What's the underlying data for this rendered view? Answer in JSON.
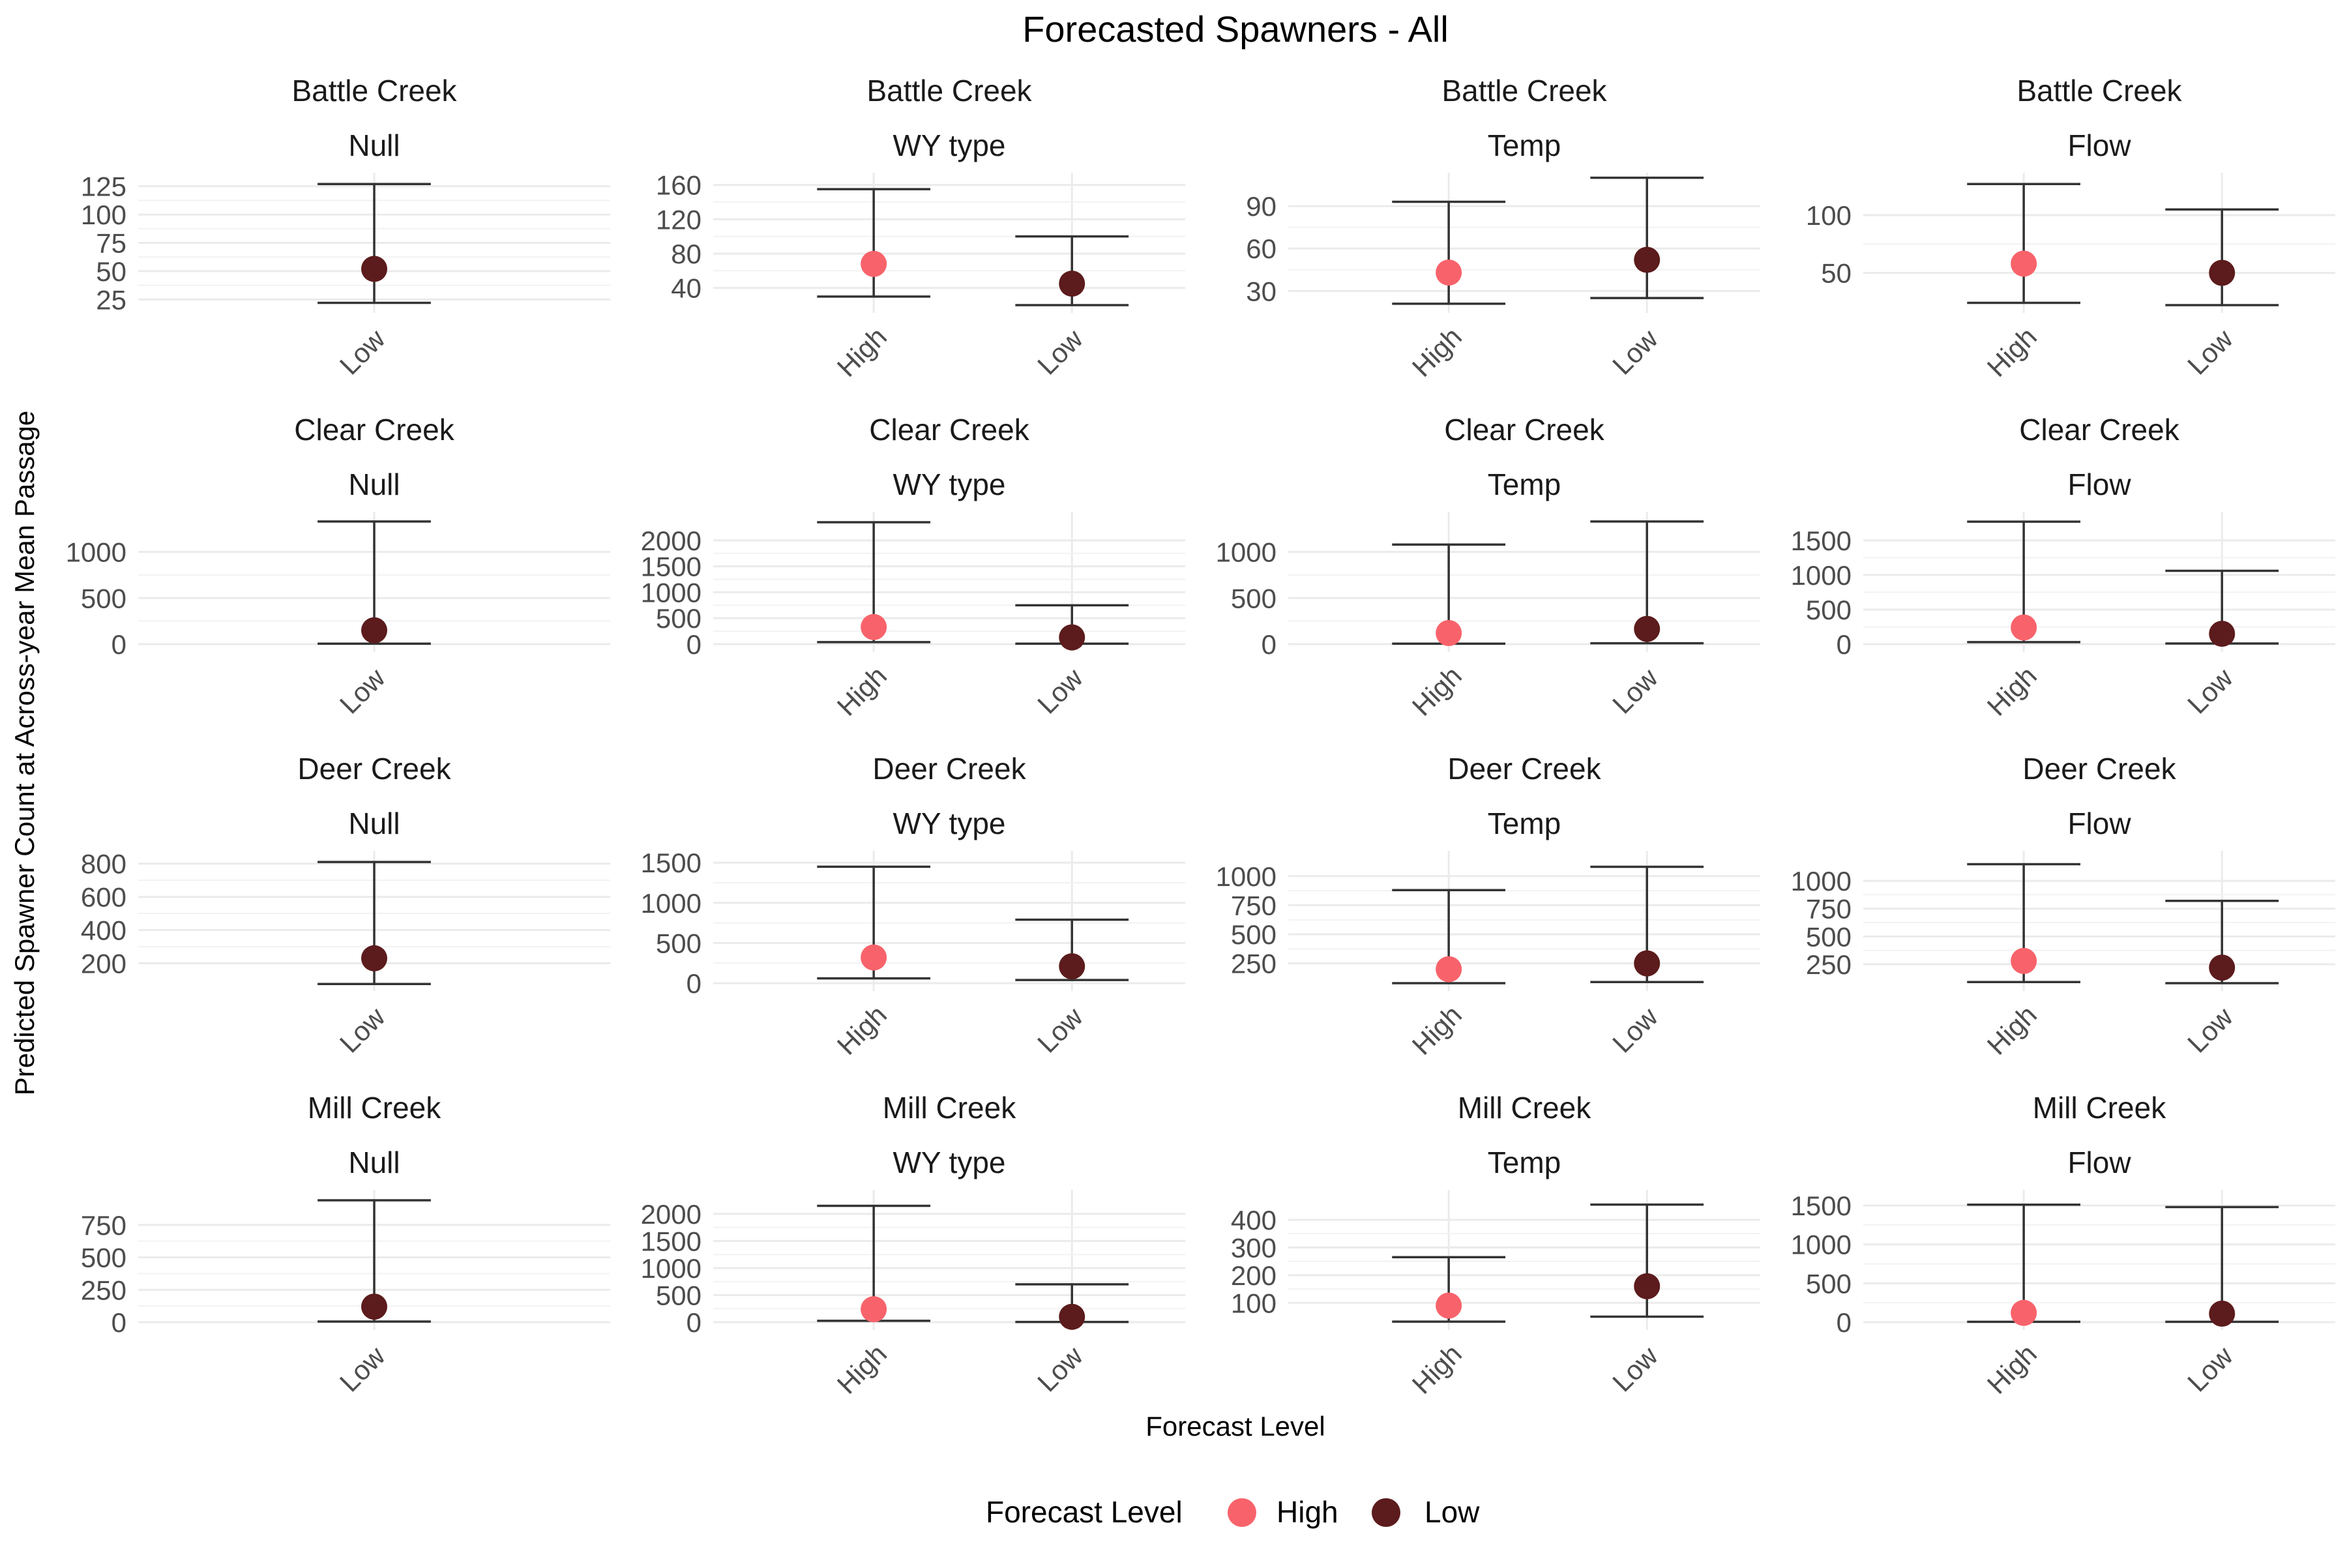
{
  "chart_data": {
    "type": "scatter",
    "title": "Forecasted Spawners - All",
    "xlabel": "Forecast Level",
    "ylabel": "Predicted Spawner Count at Across-year Mean Passage",
    "legend": {
      "title": "Forecast Level",
      "placement": "bottom",
      "entries": [
        {
          "name": "High",
          "color": "#F8636B"
        },
        {
          "name": "Low",
          "color": "#5C1B1C"
        }
      ]
    },
    "colors": {
      "High": "#F8636B",
      "Low": "#5C1B1C"
    },
    "panels": [
      {
        "stream": "Battle Creek",
        "model": "Null",
        "ylim": [
          20,
          130
        ],
        "yticks": [
          "25",
          "50",
          "75",
          "100",
          "125"
        ],
        "points": [
          {
            "level": "Low",
            "value": 52,
            "lower": 22,
            "upper": 127
          }
        ]
      },
      {
        "stream": "Battle Creek",
        "model": "WY type",
        "ylim": [
          20,
          165
        ],
        "yticks": [
          "40",
          "80",
          "120",
          "160"
        ],
        "points": [
          {
            "level": "High",
            "value": 68,
            "lower": 30,
            "upper": 155
          },
          {
            "level": "Low",
            "value": 45,
            "lower": 20,
            "upper": 100
          }
        ]
      },
      {
        "stream": "Battle Creek",
        "model": "Temp",
        "ylim": [
          20,
          108
        ],
        "yticks": [
          "30",
          "60",
          "90"
        ],
        "points": [
          {
            "level": "High",
            "value": 43,
            "lower": 21,
            "upper": 93
          },
          {
            "level": "Low",
            "value": 52,
            "lower": 25,
            "upper": 110
          }
        ]
      },
      {
        "stream": "Battle Creek",
        "model": "Flow",
        "ylim": [
          22,
          130
        ],
        "yticks": [
          "50",
          "100"
        ],
        "points": [
          {
            "level": "High",
            "value": 58,
            "lower": 24,
            "upper": 127
          },
          {
            "level": "Low",
            "value": 50,
            "lower": 22,
            "upper": 105
          }
        ]
      },
      {
        "stream": "Clear Creek",
        "model": "Null",
        "ylim": [
          0,
          1350
        ],
        "yticks": [
          "0",
          "500",
          "1000"
        ],
        "points": [
          {
            "level": "Low",
            "value": 150,
            "lower": 5,
            "upper": 1330
          }
        ]
      },
      {
        "stream": "Clear Creek",
        "model": "WY type",
        "ylim": [
          0,
          2400
        ],
        "yticks": [
          "0",
          "500",
          "1000",
          "1500",
          "2000"
        ],
        "points": [
          {
            "level": "High",
            "value": 330,
            "lower": 40,
            "upper": 2350
          },
          {
            "level": "Low",
            "value": 130,
            "lower": 10,
            "upper": 750
          }
        ]
      },
      {
        "stream": "Clear Creek",
        "model": "Temp",
        "ylim": [
          0,
          1350
        ],
        "yticks": [
          "0",
          "500",
          "1000"
        ],
        "points": [
          {
            "level": "High",
            "value": 120,
            "lower": 5,
            "upper": 1080
          },
          {
            "level": "Low",
            "value": 165,
            "lower": 10,
            "upper": 1330
          }
        ]
      },
      {
        "stream": "Clear Creek",
        "model": "Flow",
        "ylim": [
          0,
          1800
        ],
        "yticks": [
          "0",
          "500",
          "1000",
          "1500"
        ],
        "points": [
          {
            "level": "High",
            "value": 240,
            "lower": 30,
            "upper": 1770
          },
          {
            "level": "Low",
            "value": 150,
            "lower": 10,
            "upper": 1060
          }
        ]
      },
      {
        "stream": "Deer Creek",
        "model": "Null",
        "ylim": [
          80,
          830
        ],
        "yticks": [
          "200",
          "400",
          "600",
          "800"
        ],
        "points": [
          {
            "level": "Low",
            "value": 230,
            "lower": 75,
            "upper": 810
          }
        ]
      },
      {
        "stream": "Deer Creek",
        "model": "WY type",
        "ylim": [
          0,
          1550
        ],
        "yticks": [
          "0",
          "500",
          "1000",
          "1500"
        ],
        "points": [
          {
            "level": "High",
            "value": 320,
            "lower": 60,
            "upper": 1450
          },
          {
            "level": "Low",
            "value": 210,
            "lower": 40,
            "upper": 790
          }
        ]
      },
      {
        "stream": "Deer Creek",
        "model": "Temp",
        "ylim": [
          80,
          1150
        ],
        "yticks": [
          "250",
          "500",
          "750",
          "1000"
        ],
        "points": [
          {
            "level": "High",
            "value": 200,
            "lower": 80,
            "upper": 880
          },
          {
            "level": "Low",
            "value": 250,
            "lower": 90,
            "upper": 1080
          }
        ]
      },
      {
        "stream": "Deer Creek",
        "model": "Flow",
        "ylim": [
          80,
          1200
        ],
        "yticks": [
          "250",
          "500",
          "750",
          "1000"
        ],
        "points": [
          {
            "level": "High",
            "value": 280,
            "lower": 90,
            "upper": 1150
          },
          {
            "level": "Low",
            "value": 220,
            "lower": 80,
            "upper": 820
          }
        ]
      },
      {
        "stream": "Mill Creek",
        "model": "Null",
        "ylim": [
          0,
          960
        ],
        "yticks": [
          "0",
          "250",
          "500",
          "750"
        ],
        "points": [
          {
            "level": "Low",
            "value": 120,
            "lower": 5,
            "upper": 940
          }
        ]
      },
      {
        "stream": "Mill Creek",
        "model": "WY type",
        "ylim": [
          0,
          2300
        ],
        "yticks": [
          "0",
          "500",
          "1000",
          "1500",
          "2000"
        ],
        "points": [
          {
            "level": "High",
            "value": 240,
            "lower": 25,
            "upper": 2150
          },
          {
            "level": "Low",
            "value": 100,
            "lower": 5,
            "upper": 700
          }
        ]
      },
      {
        "stream": "Mill Creek",
        "model": "Temp",
        "ylim": [
          30,
          480
        ],
        "yticks": [
          "100",
          "200",
          "300",
          "400"
        ],
        "points": [
          {
            "level": "High",
            "value": 90,
            "lower": 32,
            "upper": 265
          },
          {
            "level": "Low",
            "value": 160,
            "lower": 50,
            "upper": 455
          }
        ]
      },
      {
        "stream": "Mill Creek",
        "model": "Flow",
        "ylim": [
          0,
          1600
        ],
        "yticks": [
          "0",
          "500",
          "1000",
          "1500"
        ],
        "points": [
          {
            "level": "High",
            "value": 120,
            "lower": 5,
            "upper": 1510
          },
          {
            "level": "Low",
            "value": 110,
            "lower": 5,
            "upper": 1480
          }
        ]
      }
    ],
    "grid": true
  }
}
